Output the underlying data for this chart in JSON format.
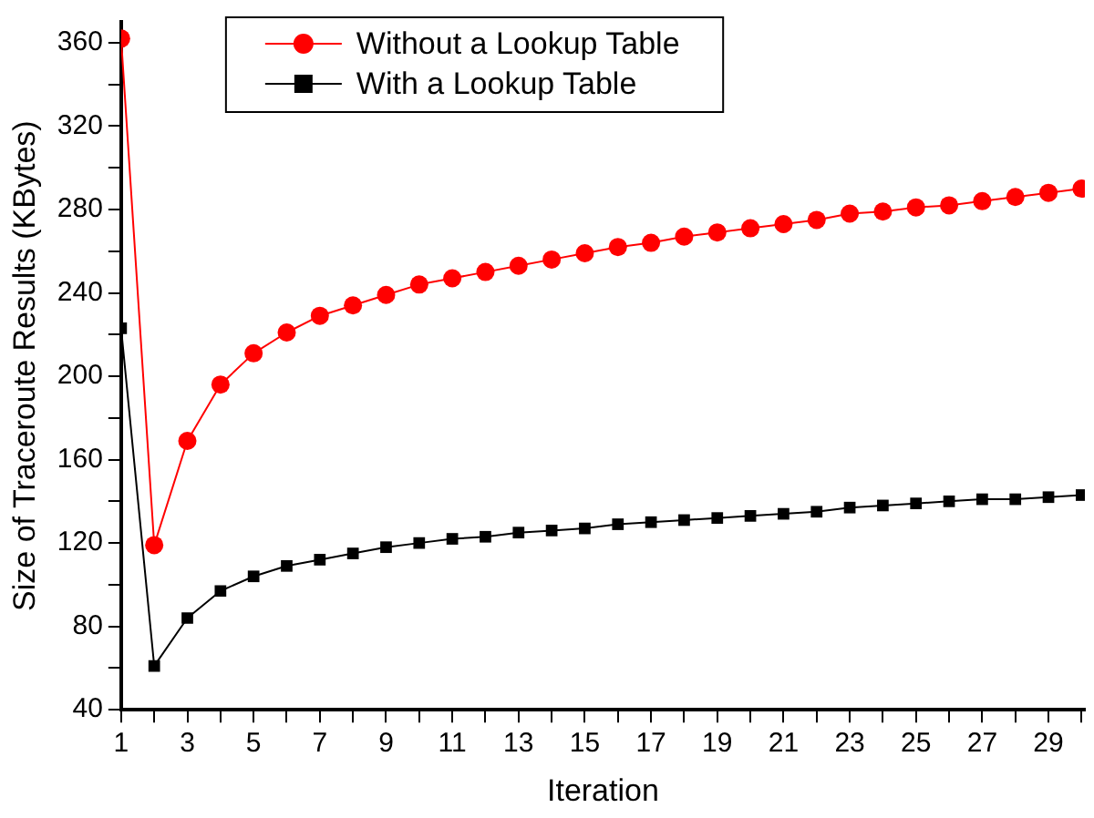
{
  "chart_data": {
    "type": "line",
    "xlabel": "Iteration",
    "ylabel": "Size of Traceroute Results (KBytes)",
    "x": [
      1,
      2,
      3,
      4,
      5,
      6,
      7,
      8,
      9,
      10,
      11,
      12,
      13,
      14,
      15,
      16,
      17,
      18,
      19,
      20,
      21,
      22,
      23,
      24,
      25,
      26,
      27,
      28,
      29,
      30
    ],
    "series": [
      {
        "name": "Without a Lookup Table",
        "color": "#ff0000",
        "marker": "circle",
        "values": [
          362,
          119,
          169,
          196,
          211,
          221,
          229,
          234,
          239,
          244,
          247,
          250,
          253,
          256,
          259,
          262,
          264,
          267,
          269,
          271,
          273,
          275,
          278,
          279,
          281,
          282,
          284,
          286,
          288,
          290
        ]
      },
      {
        "name": "With a Lookup Table",
        "color": "#000000",
        "marker": "square",
        "values": [
          223,
          61,
          84,
          97,
          104,
          109,
          112,
          115,
          118,
          120,
          122,
          123,
          125,
          126,
          127,
          129,
          130,
          131,
          132,
          133,
          134,
          135,
          137,
          138,
          139,
          140,
          141,
          141,
          142,
          143
        ]
      }
    ],
    "xlim": [
      1,
      30.1
    ],
    "xticks": [
      1,
      {
        "value": 2,
        "label": null
      },
      3,
      {
        "value": 4,
        "label": null
      },
      5,
      {
        "value": 6,
        "label": null
      },
      7,
      {
        "value": 8,
        "label": null
      },
      9,
      {
        "value": 10,
        "label": null
      },
      11,
      {
        "value": 12,
        "label": null
      },
      13,
      {
        "value": 14,
        "label": null
      },
      15,
      {
        "value": 16,
        "label": null
      },
      17,
      {
        "value": 18,
        "label": null
      },
      19,
      {
        "value": 20,
        "label": null
      },
      21,
      {
        "value": 22,
        "label": null
      },
      23,
      {
        "value": 24,
        "label": null
      },
      25,
      {
        "value": 26,
        "label": null
      },
      27,
      {
        "value": 28,
        "label": null
      },
      29,
      {
        "value": 30,
        "label": null
      }
    ],
    "ylim": [
      40,
      370
    ],
    "yticks": [
      40,
      {
        "value": 60,
        "label": null
      },
      80,
      {
        "value": 100,
        "label": null
      },
      120,
      {
        "value": 140,
        "label": null
      },
      160,
      {
        "value": 180,
        "label": null
      },
      200,
      {
        "value": 220,
        "label": null
      },
      240,
      {
        "value": 260,
        "label": null
      },
      280,
      {
        "value": 300,
        "label": null
      },
      320,
      {
        "value": 340,
        "label": null
      },
      360
    ],
    "grid": false,
    "legend": "top",
    "line_style": "solid"
  }
}
